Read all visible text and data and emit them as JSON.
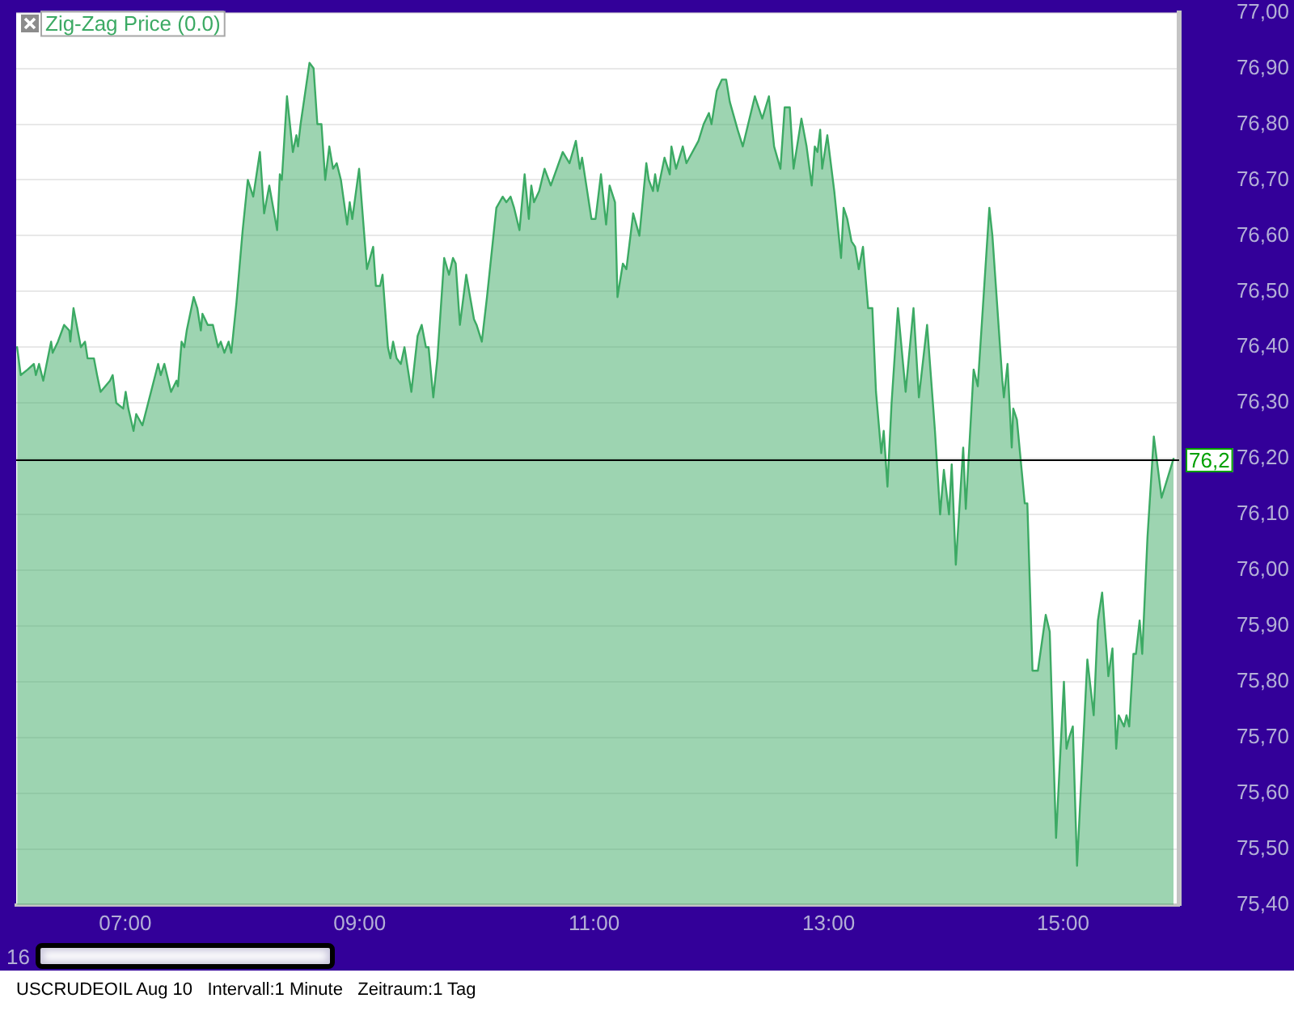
{
  "chart_data": {
    "type": "area",
    "legend": "top left",
    "grid": "y",
    "marker": "none",
    "xlim": [
      6.07,
      15.99
    ],
    "xticks": [
      {
        "value": 7,
        "label": "07:00"
      },
      {
        "value": 9,
        "label": "09:00"
      },
      {
        "value": 11,
        "label": "11:00"
      },
      {
        "value": 13,
        "label": "13:00"
      },
      {
        "value": 15,
        "label": "15:00"
      }
    ],
    "ylim": [
      75.4,
      77.0
    ],
    "yticks": [
      {
        "value": 75.4,
        "label": "75,40"
      },
      {
        "value": 75.5,
        "label": "75,50"
      },
      {
        "value": 75.6,
        "label": "75,60"
      },
      {
        "value": 75.7,
        "label": "75,70"
      },
      {
        "value": 75.8,
        "label": "75,80"
      },
      {
        "value": 75.9,
        "label": "75,90"
      },
      {
        "value": 76.0,
        "label": "76,00"
      },
      {
        "value": 76.1,
        "label": "76,10"
      },
      {
        "value": 76.2,
        "label": "76,20"
      },
      {
        "value": 76.3,
        "label": "76,30"
      },
      {
        "value": 76.4,
        "label": "76,40"
      },
      {
        "value": 76.5,
        "label": "76,50"
      },
      {
        "value": 76.6,
        "label": "76,60"
      },
      {
        "value": 76.7,
        "label": "76,70"
      },
      {
        "value": 76.8,
        "label": "76,80"
      },
      {
        "value": 76.9,
        "label": "76,90"
      },
      {
        "value": 77.0,
        "label": "77,00"
      }
    ],
    "ref_lines": [
      {
        "axis": "y",
        "value": 76.2,
        "label": "76,2",
        "color": "#000000"
      }
    ],
    "annotations": [
      "16",
      "USCRUDEOIL Aug 10   Intervall:1 Minute   Zeitraum:1 Tag"
    ],
    "series": [
      {
        "name": "Zig-Zag Price (0.0)",
        "color": "#3caa64",
        "x": [
          6.078,
          6.109,
          6.168,
          6.221,
          6.238,
          6.265,
          6.301,
          6.368,
          6.381,
          6.426,
          6.479,
          6.523,
          6.532,
          6.559,
          6.622,
          6.657,
          6.679,
          6.733,
          6.76,
          6.79,
          6.87,
          6.893,
          6.924,
          6.983,
          7.004,
          7.027,
          7.071,
          7.094,
          7.147,
          7.281,
          7.303,
          7.334,
          7.391,
          7.437,
          7.45,
          7.481,
          7.504,
          7.525,
          7.584,
          7.615,
          7.645,
          7.659,
          7.704,
          7.748,
          7.792,
          7.815,
          7.846,
          7.882,
          7.905,
          7.949,
          8.002,
          8.046,
          8.092,
          8.149,
          8.185,
          8.229,
          8.296,
          8.319,
          8.336,
          8.38,
          8.43,
          8.46,
          8.474,
          8.496,
          8.572,
          8.607,
          8.639,
          8.674,
          8.706,
          8.741,
          8.773,
          8.804,
          8.84,
          8.893,
          8.915,
          8.937,
          8.995,
          9.062,
          9.115,
          9.138,
          9.174,
          9.195,
          9.241,
          9.262,
          9.285,
          9.315,
          9.351,
          9.382,
          9.441,
          9.494,
          9.529,
          9.565,
          9.588,
          9.628,
          9.663,
          9.721,
          9.762,
          9.796,
          9.819,
          9.855,
          9.909,
          9.975,
          9.997,
          10.042,
          10.086,
          10.166,
          10.22,
          10.251,
          10.287,
          10.317,
          10.363,
          10.407,
          10.443,
          10.464,
          10.487,
          10.531,
          10.577,
          10.63,
          10.732,
          10.79,
          10.844,
          10.878,
          10.897,
          10.977,
          11.012,
          11.058,
          11.102,
          11.132,
          11.178,
          11.199,
          11.245,
          11.275,
          11.333,
          11.386,
          11.445,
          11.466,
          11.502,
          11.52,
          11.542,
          11.6,
          11.645,
          11.659,
          11.699,
          11.756,
          11.787,
          11.89,
          11.934,
          11.979,
          12.001,
          12.046,
          12.09,
          12.126,
          12.157,
          12.224,
          12.268,
          12.371,
          12.434,
          12.491,
          12.535,
          12.589,
          12.625,
          12.669,
          12.701,
          12.768,
          12.812,
          12.856,
          12.882,
          12.905,
          12.928,
          12.945,
          12.989,
          13.048,
          13.106,
          13.128,
          13.159,
          13.195,
          13.226,
          13.257,
          13.293,
          13.337,
          13.373,
          13.404,
          13.449,
          13.47,
          13.502,
          13.537,
          13.591,
          13.657,
          13.724,
          13.77,
          13.84,
          13.907,
          13.951,
          13.983,
          14.027,
          14.05,
          14.085,
          14.148,
          14.17,
          14.237,
          14.272,
          14.371,
          14.397,
          14.482,
          14.495,
          14.526,
          14.562,
          14.575,
          14.606,
          14.673,
          14.695,
          14.739,
          14.785,
          14.852,
          14.886,
          14.94,
          15.007,
          15.029,
          15.052,
          15.083,
          15.119,
          15.207,
          15.261,
          15.297,
          15.333,
          15.373,
          15.386,
          15.421,
          15.453,
          15.474,
          15.52,
          15.541,
          15.564,
          15.6,
          15.621,
          15.653,
          15.675,
          15.72,
          15.774,
          15.84,
          15.942
        ],
        "values": [
          76.4,
          76.35,
          76.36,
          76.37,
          76.35,
          76.37,
          76.34,
          76.41,
          76.39,
          76.41,
          76.44,
          76.43,
          76.41,
          76.47,
          76.4,
          76.41,
          76.38,
          76.38,
          76.35,
          76.32,
          76.34,
          76.35,
          76.3,
          76.29,
          76.32,
          76.29,
          76.25,
          76.28,
          76.26,
          76.37,
          76.35,
          76.37,
          76.32,
          76.34,
          76.33,
          76.41,
          76.4,
          76.43,
          76.49,
          76.47,
          76.43,
          76.46,
          76.44,
          76.44,
          76.4,
          76.41,
          76.39,
          76.41,
          76.39,
          76.48,
          76.61,
          76.7,
          76.67,
          76.75,
          76.64,
          76.69,
          76.61,
          76.71,
          76.7,
          76.85,
          76.75,
          76.78,
          76.76,
          76.8,
          76.91,
          76.9,
          76.8,
          76.8,
          76.7,
          76.76,
          76.72,
          76.73,
          76.7,
          76.62,
          76.66,
          76.63,
          76.72,
          76.54,
          76.58,
          76.51,
          76.51,
          76.53,
          76.4,
          76.38,
          76.41,
          76.38,
          76.37,
          76.4,
          76.32,
          76.42,
          76.44,
          76.4,
          76.4,
          76.31,
          76.38,
          76.56,
          76.53,
          76.56,
          76.55,
          76.44,
          76.53,
          76.45,
          76.44,
          76.41,
          76.49,
          76.65,
          76.67,
          76.66,
          76.67,
          76.65,
          76.61,
          76.71,
          76.63,
          76.69,
          76.66,
          76.68,
          76.72,
          76.69,
          76.75,
          76.73,
          76.77,
          76.72,
          76.74,
          76.63,
          76.63,
          76.71,
          76.62,
          76.69,
          76.66,
          76.49,
          76.55,
          76.54,
          76.64,
          76.6,
          76.73,
          76.7,
          76.68,
          76.71,
          76.68,
          76.74,
          76.71,
          76.76,
          76.72,
          76.76,
          76.73,
          76.77,
          76.8,
          76.82,
          76.8,
          76.86,
          76.88,
          76.88,
          76.84,
          76.79,
          76.76,
          76.85,
          76.81,
          76.85,
          76.76,
          76.72,
          76.83,
          76.83,
          76.72,
          76.81,
          76.76,
          76.69,
          76.76,
          76.75,
          76.79,
          76.72,
          76.78,
          76.68,
          76.56,
          76.65,
          76.63,
          76.59,
          76.58,
          76.54,
          76.58,
          76.47,
          76.47,
          76.32,
          76.21,
          76.25,
          76.15,
          76.3,
          76.47,
          76.32,
          76.47,
          76.31,
          76.44,
          76.25,
          76.1,
          76.18,
          76.1,
          76.19,
          76.01,
          76.22,
          76.11,
          76.36,
          76.33,
          76.65,
          76.6,
          76.34,
          76.31,
          76.37,
          76.22,
          76.29,
          76.27,
          76.12,
          76.12,
          75.82,
          75.82,
          75.92,
          75.89,
          75.52,
          75.8,
          75.68,
          75.7,
          75.72,
          75.47,
          75.84,
          75.74,
          75.91,
          75.96,
          75.85,
          75.81,
          75.86,
          75.68,
          75.74,
          75.72,
          75.74,
          75.72,
          75.85,
          75.85,
          75.91,
          75.85,
          76.06,
          76.24,
          76.13,
          76.2
        ]
      }
    ]
  }
}
